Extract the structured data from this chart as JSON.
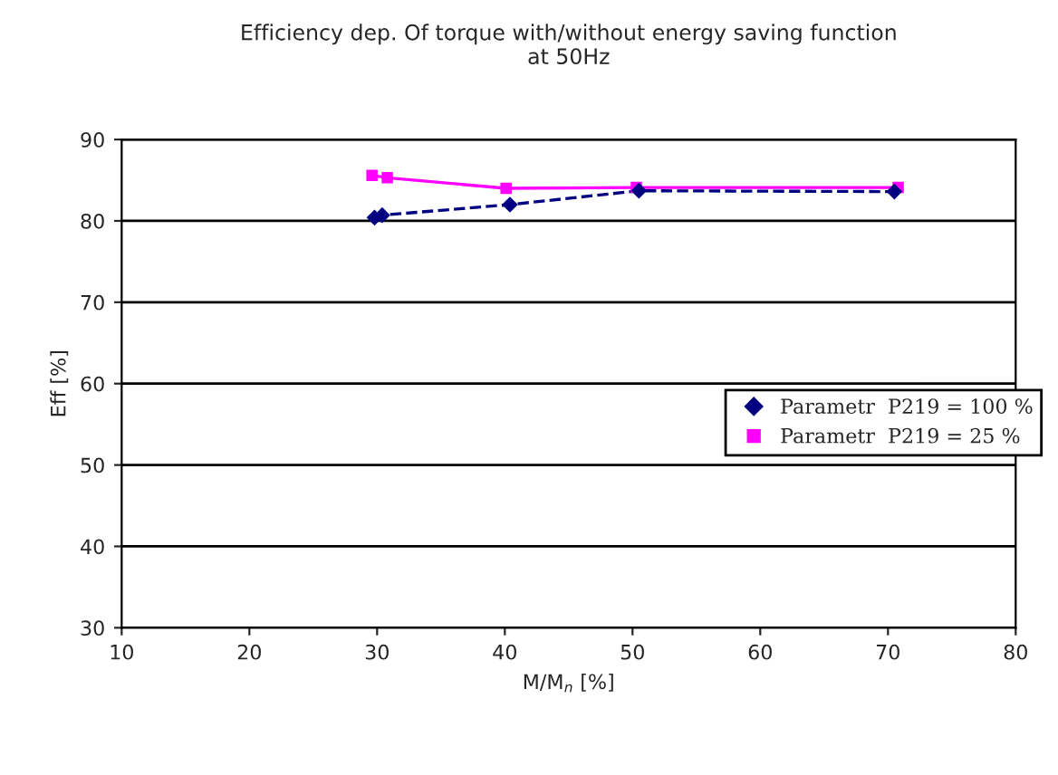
{
  "chart_data": {
    "type": "line",
    "title": "Efficiency dep. Of torque with/without energy saving function\nat 50Hz",
    "xlabel": "M/M$_{n}$ [%]",
    "ylabel": "Eff [%]",
    "xlim": [
      10,
      80
    ],
    "xticks": [
      10,
      20,
      30,
      40,
      50,
      60,
      70,
      80
    ],
    "ylim": [
      30,
      90
    ],
    "yticks": [
      30,
      40,
      50,
      60,
      70,
      80,
      90
    ],
    "grid": "y",
    "legend": "right",
    "series": [
      {
        "name": "Parametr  P219 = 100 %",
        "color": "#000080",
        "line_style": "dashed",
        "marker": "diamond",
        "x": [
          29.8,
          30.4,
          40.4,
          50.5,
          70.5
        ],
        "values": [
          80.4,
          80.7,
          82.0,
          83.7,
          83.6
        ]
      },
      {
        "name": "Parametr  P219 = 25 %",
        "color": "#ff00ff",
        "line_style": "solid",
        "marker": "square",
        "x": [
          29.6,
          30.8,
          40.1,
          50.3,
          70.8
        ],
        "values": [
          85.6,
          85.3,
          84.0,
          84.1,
          84.1
        ]
      }
    ]
  }
}
